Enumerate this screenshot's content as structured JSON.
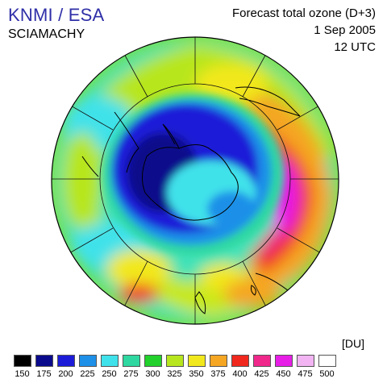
{
  "header": {
    "org": "KNMI / ESA",
    "instrument": "SCIAMACHY",
    "forecast_title": "Forecast total ozone (D+3)",
    "date": "1 Sep 2005",
    "time": "12 UTC"
  },
  "legend": {
    "unit": "[DU]",
    "steps": [
      {
        "value": "150",
        "color": "#000000"
      },
      {
        "value": "175",
        "color": "#0a0a8c"
      },
      {
        "value": "200",
        "color": "#1c1cd8"
      },
      {
        "value": "225",
        "color": "#1e90e8"
      },
      {
        "value": "250",
        "color": "#3fe2ea"
      },
      {
        "value": "275",
        "color": "#2ed8a0"
      },
      {
        "value": "300",
        "color": "#22d12c"
      },
      {
        "value": "325",
        "color": "#b7e61e"
      },
      {
        "value": "350",
        "color": "#f2e81e"
      },
      {
        "value": "375",
        "color": "#f5a623"
      },
      {
        "value": "400",
        "color": "#f0281e"
      },
      {
        "value": "425",
        "color": "#f0288c"
      },
      {
        "value": "450",
        "color": "#e61ee6"
      },
      {
        "value": "475",
        "color": "#f2b4f2"
      },
      {
        "value": "500",
        "color": "#ffffff"
      }
    ]
  }
}
